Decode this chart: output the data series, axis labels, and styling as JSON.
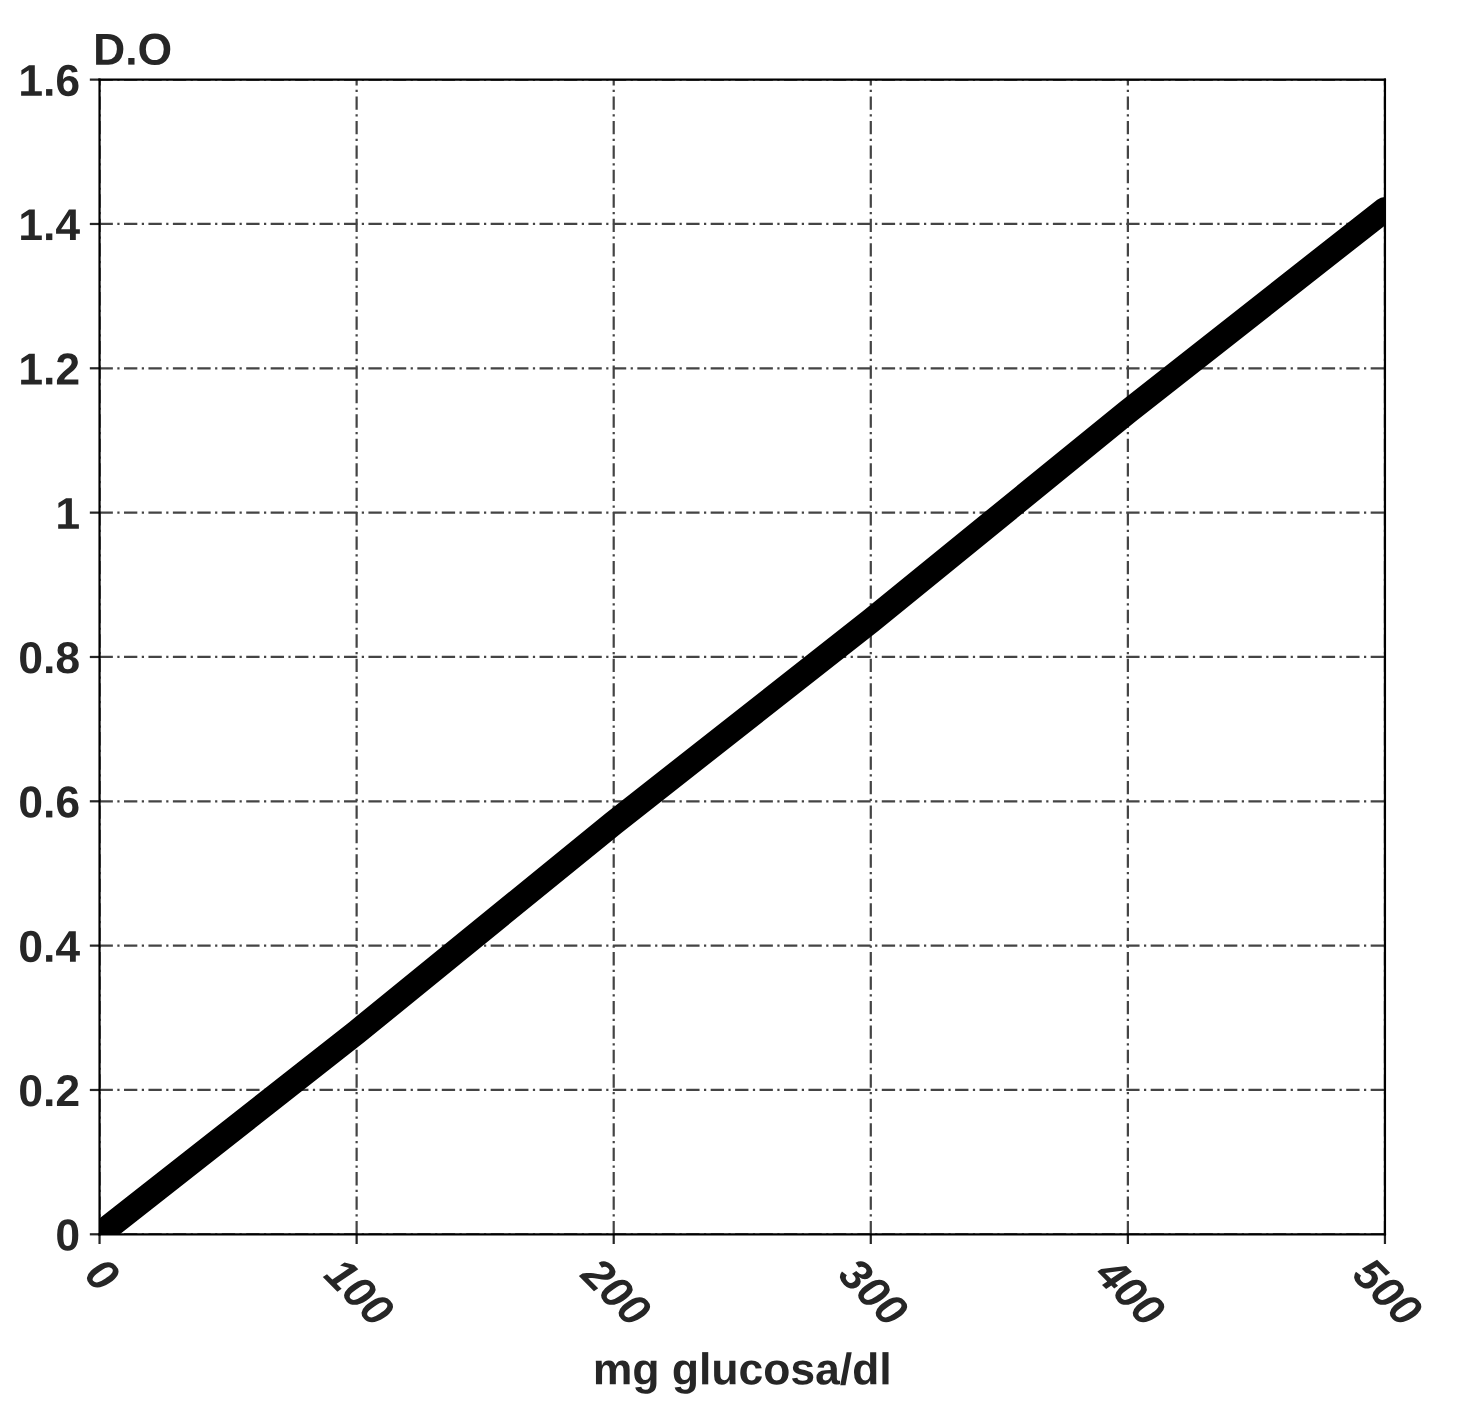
{
  "chart_data": {
    "type": "line",
    "xlabel": "mg glucosa/dl",
    "ylabel": "D.O",
    "x": [
      0,
      100,
      200,
      300,
      400,
      500
    ],
    "series": [
      {
        "color": "#000000",
        "values": [
          0,
          0.28,
          0.57,
          0.85,
          1.14,
          1.42
        ]
      }
    ],
    "xlim": [
      0,
      500
    ],
    "xticks": [
      0,
      100,
      200,
      300,
      400,
      500
    ],
    "ylim": [
      0,
      1.6
    ],
    "yticks": [
      0,
      0.2,
      0.4,
      0.6,
      0.8,
      1,
      1.2,
      1.4,
      1.6
    ],
    "grid": true,
    "line_style": "solid",
    "legend": false
  }
}
